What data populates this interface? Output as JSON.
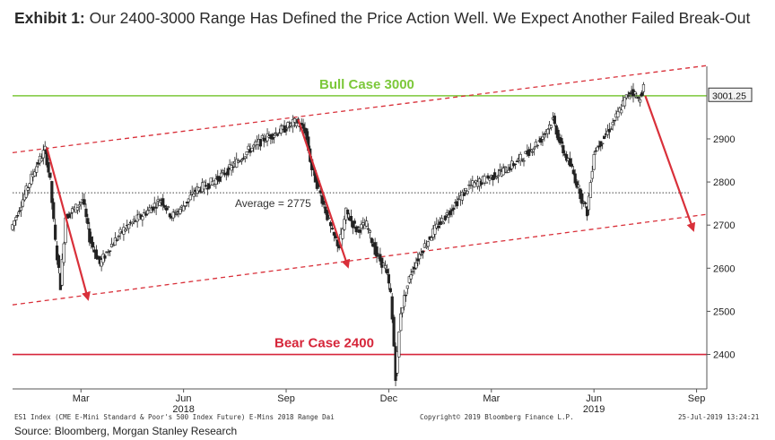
{
  "header": {
    "exhibit_label": "Exhibit 1:",
    "title": "Our 2400-3000 Range Has Defined the Price Action Well. We Expect Another Failed Break-Out"
  },
  "chart_data": {
    "type": "candlestick",
    "series_name": "ES1 Index (CME E-Mini Standard & Poor's 500 Index Future)",
    "ylim": [
      2320,
      3060
    ],
    "y_ticks": [
      2400,
      2500,
      2600,
      2700,
      2800,
      2900
    ],
    "last_price_label": "3001.25",
    "last_price_value": 3001.25,
    "x_ticks": [
      {
        "label": "Mar",
        "month_index": 2
      },
      {
        "label": "Jun",
        "month_index": 5
      },
      {
        "label": "Sep",
        "month_index": 8
      },
      {
        "label": "Dec",
        "month_index": 11
      },
      {
        "label": "Mar",
        "month_index": 14
      },
      {
        "label": "Jun",
        "month_index": 17
      },
      {
        "label": "Sep",
        "month_index": 20
      }
    ],
    "year_labels": [
      {
        "label": "2018",
        "month_index": 5
      },
      {
        "label": "2019",
        "month_index": 17
      }
    ],
    "x_range_months": [
      0,
      20.3
    ],
    "price_path": [
      [
        0.0,
        2690
      ],
      [
        0.35,
        2760
      ],
      [
        0.7,
        2830
      ],
      [
        1.0,
        2875
      ],
      [
        1.15,
        2800
      ],
      [
        1.3,
        2660
      ],
      [
        1.45,
        2560
      ],
      [
        1.6,
        2720
      ],
      [
        1.9,
        2740
      ],
      [
        2.1,
        2760
      ],
      [
        2.3,
        2670
      ],
      [
        2.6,
        2610
      ],
      [
        2.9,
        2650
      ],
      [
        3.3,
        2690
      ],
      [
        3.8,
        2720
      ],
      [
        4.4,
        2760
      ],
      [
        4.7,
        2720
      ],
      [
        5.0,
        2740
      ],
      [
        5.4,
        2780
      ],
      [
        5.9,
        2800
      ],
      [
        6.4,
        2830
      ],
      [
        6.9,
        2870
      ],
      [
        7.4,
        2900
      ],
      [
        7.9,
        2920
      ],
      [
        8.35,
        2940
      ],
      [
        8.6,
        2920
      ],
      [
        8.8,
        2830
      ],
      [
        9.1,
        2760
      ],
      [
        9.4,
        2680
      ],
      [
        9.6,
        2650
      ],
      [
        9.8,
        2730
      ],
      [
        10.1,
        2690
      ],
      [
        10.4,
        2700
      ],
      [
        10.7,
        2630
      ],
      [
        10.95,
        2600
      ],
      [
        11.1,
        2540
      ],
      [
        11.2,
        2420
      ],
      [
        11.25,
        2350
      ],
      [
        11.4,
        2500
      ],
      [
        11.7,
        2590
      ],
      [
        12.0,
        2640
      ],
      [
        12.4,
        2690
      ],
      [
        12.9,
        2740
      ],
      [
        13.4,
        2790
      ],
      [
        14.0,
        2810
      ],
      [
        14.5,
        2830
      ],
      [
        15.0,
        2860
      ],
      [
        15.5,
        2900
      ],
      [
        15.85,
        2945
      ],
      [
        16.1,
        2880
      ],
      [
        16.4,
        2830
      ],
      [
        16.7,
        2760
      ],
      [
        16.85,
        2730
      ],
      [
        17.05,
        2870
      ],
      [
        17.4,
        2910
      ],
      [
        17.7,
        2950
      ],
      [
        17.95,
        2990
      ],
      [
        18.15,
        3015
      ],
      [
        18.35,
        2990
      ],
      [
        18.5,
        3020
      ]
    ],
    "horizontal_levels": [
      {
        "label": "Bull Case 3000",
        "value": 3000,
        "color": "#7cc83a"
      },
      {
        "label": "Bear Case 2400",
        "value": 2400,
        "color": "#d6263a"
      },
      {
        "label": "Average = 2775",
        "value": 2775,
        "color": "#444444",
        "style": "dotted"
      }
    ],
    "channel_lines": [
      {
        "name": "upper channel",
        "points": [
          [
            0.0,
            2868
          ],
          [
            20.3,
            3070
          ]
        ],
        "color": "#d9303a",
        "style": "dashed"
      },
      {
        "name": "lower channel",
        "points": [
          [
            0.0,
            2515
          ],
          [
            20.3,
            2725
          ]
        ],
        "color": "#d9303a",
        "style": "dashed"
      }
    ],
    "arrows": [
      {
        "from": [
          1.0,
          2880
        ],
        "to": [
          2.2,
          2530
        ],
        "color": "#d9303a"
      },
      {
        "from": [
          8.35,
          2945
        ],
        "to": [
          9.8,
          2605
        ],
        "color": "#d9303a"
      },
      {
        "from": [
          18.5,
          3000
        ],
        "to": [
          19.9,
          2690
        ],
        "color": "#d9303a"
      }
    ]
  },
  "footer": {
    "left": "ES1 Index (CME E-Mini Standard & Poor's 500 Index Future) E-Mins 2018 Range  Dai",
    "middle": "Copyright© 2019 Bloomberg Finance L.P.",
    "right": "25-Jul-2019 13:24:21",
    "source": "Source: Bloomberg, Morgan Stanley Research"
  },
  "colors": {
    "bull": "#7cc83a",
    "bear": "#d6263a",
    "red": "#d9303a",
    "candle": "#222222",
    "axis": "#555555"
  }
}
